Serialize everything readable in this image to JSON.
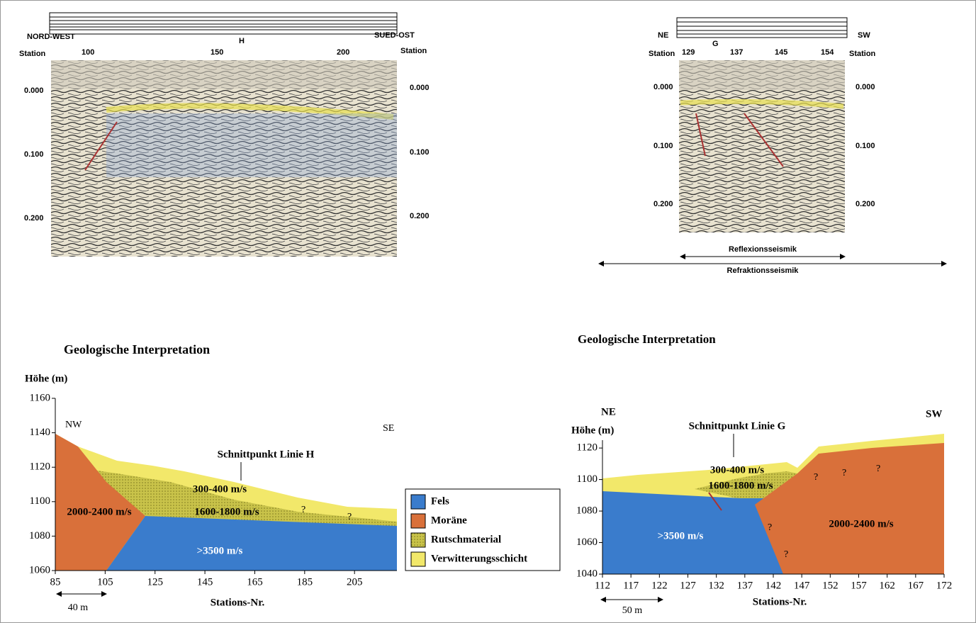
{
  "top_left": {
    "header_left": "NORD-WEST",
    "header_right": "SUED-OST",
    "station_left": "Station",
    "station_right": "Station",
    "stations": [
      100,
      150,
      200
    ],
    "marker": "H",
    "times": [
      {
        "value": 0,
        "label": "0.000"
      },
      {
        "value": 0.1,
        "label": "0.100"
      },
      {
        "value": 0.2,
        "label": "0.200"
      }
    ]
  },
  "top_right": {
    "header_left": "NE",
    "header_right": "SW",
    "station_left": "Station",
    "station_right": "Station",
    "stations": [
      129,
      137,
      145,
      154
    ],
    "marker": "G",
    "times": [
      {
        "value": 0,
        "label": "0.000"
      },
      {
        "value": 0.1,
        "label": "0.100"
      },
      {
        "value": 0.2,
        "label": "0.200"
      }
    ],
    "reflection": "Reflexionsseismik",
    "refraction": "Refraktionsseismik"
  },
  "bottom_left": {
    "title": "Geologische Interpretation",
    "y_label": "Höhe (m)",
    "x_label": "Stations-Nr.",
    "xlim": [
      85,
      222
    ],
    "ylim": [
      1060,
      1160
    ],
    "xticks": [
      85,
      105,
      125,
      145,
      165,
      185,
      205
    ],
    "yticks": [
      1060,
      1080,
      1100,
      1120,
      1140,
      1160
    ],
    "scale": "40 m",
    "left": "NW",
    "right": "SE",
    "intersection": "Schnittpunkt Linie H",
    "labels": [
      "300-400 m/s",
      "1600-1800 m/s",
      "2000-2400 m/s",
      ">3500 m/s",
      "?",
      "?"
    ]
  },
  "legend": [
    "Fels",
    "Moräne",
    "Rutschmaterial",
    "Verwitterungsschicht"
  ],
  "bottom_right": {
    "title": "Geologische Interpretation",
    "y_label": "Höhe (m)",
    "x_label": "Stations-Nr.",
    "xlim": [
      112,
      172
    ],
    "ylim": [
      1040,
      1125
    ],
    "xticks": [
      112,
      117,
      122,
      127,
      132,
      137,
      142,
      147,
      152,
      157,
      162,
      167,
      172
    ],
    "yticks": [
      1040,
      1060,
      1080,
      1100,
      1120
    ],
    "scale": "50 m",
    "left": "NE",
    "right": "SW",
    "intersection": "Schnittpunkt Linie G",
    "labels": [
      "300-400 m/s",
      "1600-1800 m/s",
      ">3500 m/s",
      "2000-2400 m/s",
      "?",
      "?",
      "?",
      "?",
      "?"
    ]
  }
}
